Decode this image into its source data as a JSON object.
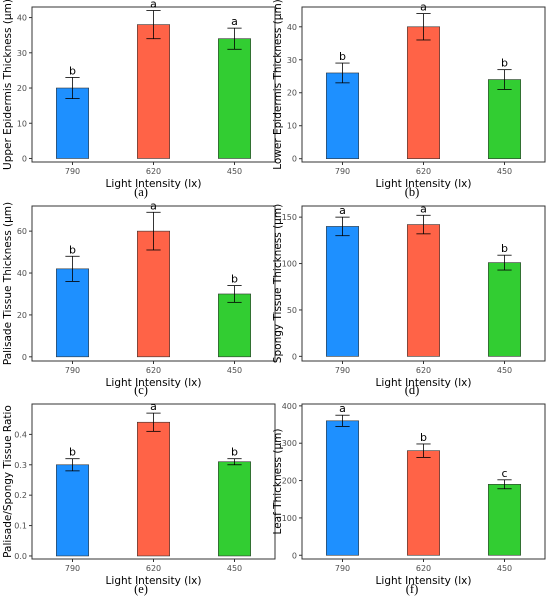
{
  "figure": {
    "colors": [
      "#1e90ff",
      "#ff6347",
      "#32cd32"
    ],
    "xlabel": "Light Intensity (lx)",
    "categories": [
      "790",
      "620",
      "450"
    ]
  },
  "chart_data": [
    {
      "type": "bar",
      "panel": "(a)",
      "ylabel": "Upper Epidermis Thickness (μm)",
      "xlabel": "Light Intensity (lx)",
      "categories": [
        "790",
        "620",
        "450"
      ],
      "values": [
        20,
        38,
        34
      ],
      "errors": [
        3,
        4,
        3
      ],
      "sig": [
        "b",
        "a",
        "a"
      ],
      "yticks": [
        0,
        10,
        20,
        30,
        40
      ],
      "ylim": [
        -1,
        43
      ]
    },
    {
      "type": "bar",
      "panel": "(b)",
      "ylabel": "Lower Epidermis Thickness (μm)",
      "xlabel": "Light Intensity (lx)",
      "categories": [
        "790",
        "620",
        "450"
      ],
      "values": [
        26,
        40,
        24
      ],
      "errors": [
        3,
        4,
        3
      ],
      "sig": [
        "b",
        "a",
        "b"
      ],
      "yticks": [
        0,
        10,
        20,
        30,
        40
      ],
      "ylim": [
        -1,
        46
      ]
    },
    {
      "type": "bar",
      "panel": "(c)",
      "ylabel": "Palisade Tissue Thickness (μm)",
      "xlabel": "Light Intensity (lx)",
      "categories": [
        "790",
        "620",
        "450"
      ],
      "values": [
        42,
        60,
        30
      ],
      "errors": [
        6,
        9,
        4
      ],
      "sig": [
        "b",
        "a",
        "b"
      ],
      "yticks": [
        0,
        20,
        40,
        60
      ],
      "ylim": [
        -2,
        72
      ]
    },
    {
      "type": "bar",
      "panel": "(d)",
      "ylabel": "Spongy Tissue Thickness (μm)",
      "xlabel": "Light Intensity (lx)",
      "categories": [
        "790",
        "620",
        "450"
      ],
      "values": [
        140,
        142,
        101
      ],
      "errors": [
        10,
        10,
        8
      ],
      "sig": [
        "a",
        "a",
        "b"
      ],
      "yticks": [
        0,
        50,
        100,
        150
      ],
      "ylim": [
        -5,
        162
      ]
    },
    {
      "type": "bar",
      "panel": "(e)",
      "ylabel": "Palisade/Spongy Tissue Ratio",
      "xlabel": "Light Intensity (lx)",
      "categories": [
        "790",
        "620",
        "450"
      ],
      "values": [
        0.3,
        0.44,
        0.31
      ],
      "errors": [
        0.02,
        0.03,
        0.01
      ],
      "sig": [
        "b",
        "a",
        "b"
      ],
      "yticks": [
        0.0,
        0.1,
        0.2,
        0.3,
        0.4
      ],
      "ytick_labels": [
        "0.0",
        "0.1",
        "0.2",
        "0.3",
        "0.4"
      ],
      "ylim": [
        -0.01,
        0.5
      ]
    },
    {
      "type": "bar",
      "panel": "(f)",
      "ylabel": "Leaf Thickness (μm)",
      "xlabel": "Light Intensity (lx)",
      "categories": [
        "790",
        "620",
        "450"
      ],
      "values": [
        360,
        280,
        190
      ],
      "errors": [
        15,
        18,
        12
      ],
      "sig": [
        "a",
        "b",
        "c"
      ],
      "yticks": [
        0,
        100,
        200,
        300,
        400
      ],
      "ylim": [
        -10,
        405
      ]
    }
  ]
}
